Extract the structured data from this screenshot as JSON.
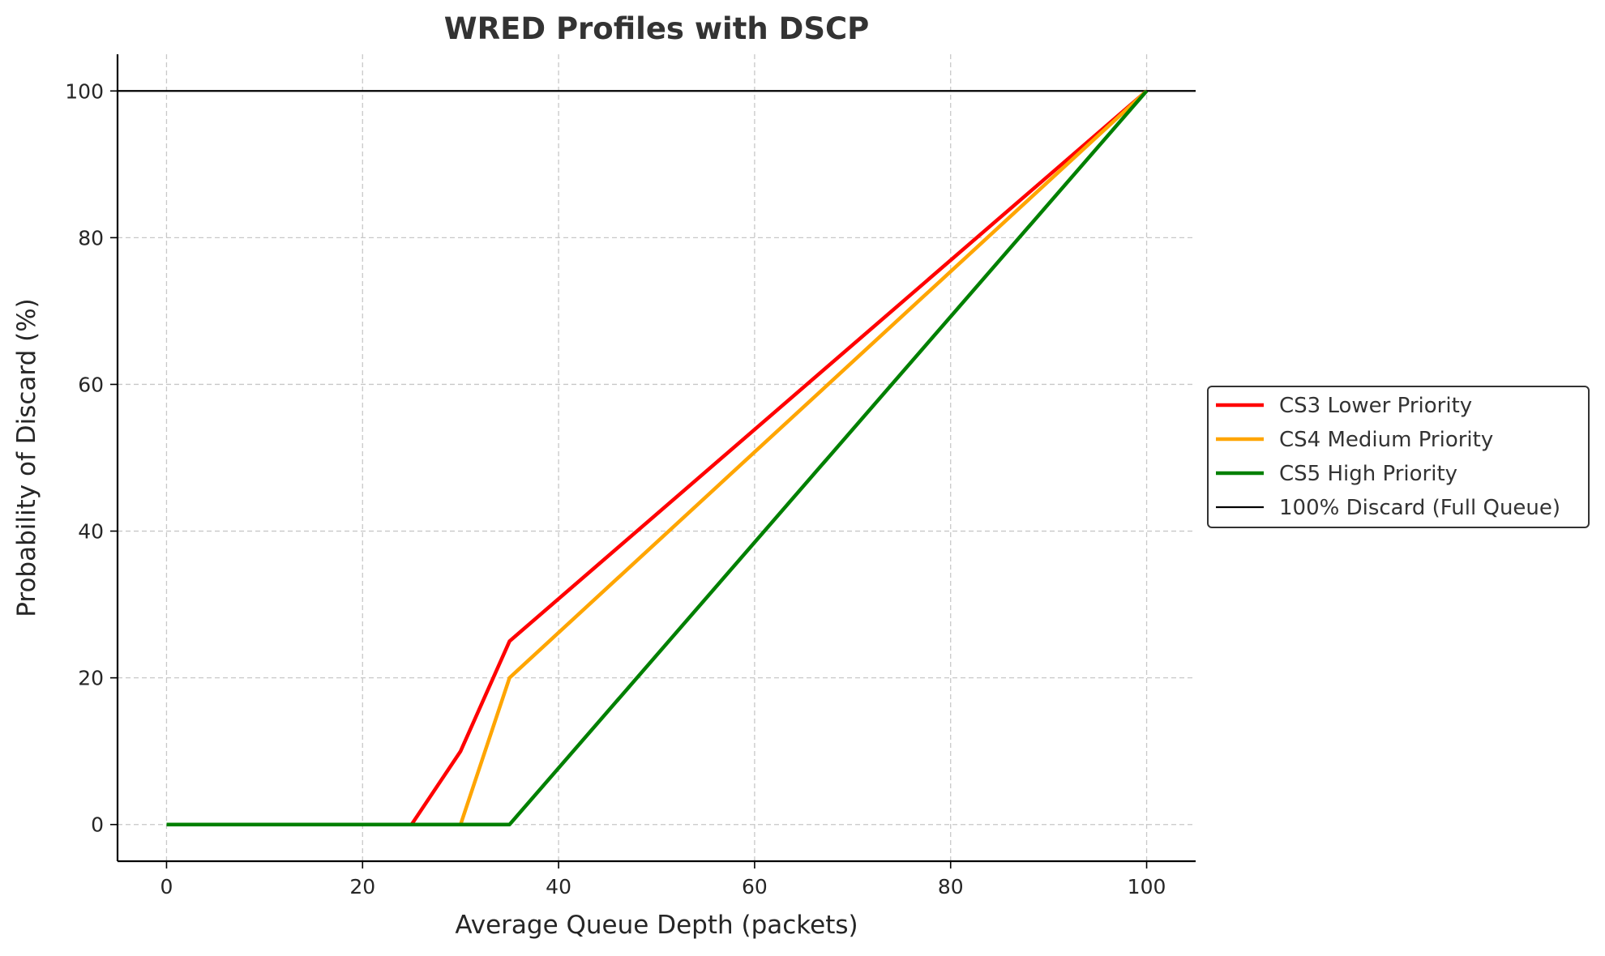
{
  "chart_data": {
    "type": "line",
    "title": "WRED Profiles with DSCP",
    "xlabel": "Average Queue Depth (packets)",
    "ylabel": "Probability of Discard (%)",
    "xlim": [
      -5,
      105
    ],
    "ylim": [
      -5,
      105
    ],
    "xticks": [
      0,
      20,
      40,
      60,
      80,
      100
    ],
    "yticks": [
      0,
      20,
      40,
      60,
      80,
      100
    ],
    "grid": true,
    "legend_position": "center-right-outside",
    "series": [
      {
        "name": "CS3 Lower Priority",
        "color": "#ff0000",
        "x": [
          0,
          25,
          30,
          35,
          100
        ],
        "y": [
          0,
          0,
          10,
          25,
          100
        ]
      },
      {
        "name": "CS4 Medium Priority",
        "color": "#ffa500",
        "x": [
          0,
          30,
          35,
          100
        ],
        "y": [
          0,
          0,
          20,
          100
        ]
      },
      {
        "name": "CS5 High Priority",
        "color": "#008000",
        "x": [
          0,
          35,
          100
        ],
        "y": [
          0,
          0,
          100
        ]
      }
    ],
    "reference_line": {
      "name": "100% Discard (Full Queue)",
      "color": "#000000",
      "y": 100
    }
  }
}
